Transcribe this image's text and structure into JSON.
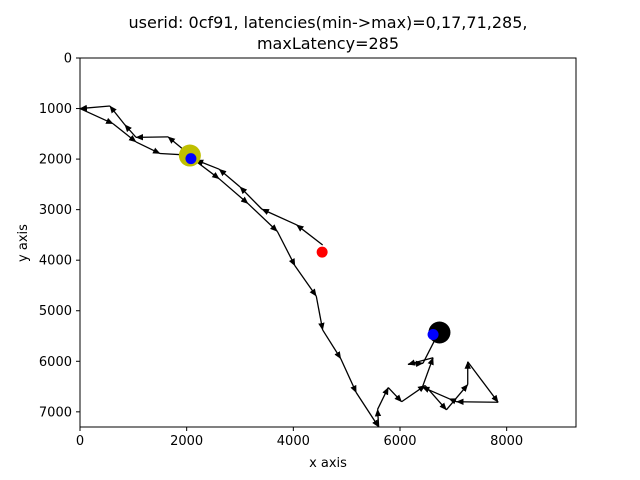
{
  "chart_data": {
    "type": "scatter",
    "title_lines": [
      "userid: 0cf91, latencies(min->max)=0,17,71,285,",
      "maxLatency=285"
    ],
    "xlabel": "x axis",
    "ylabel": "y axis",
    "xlim": [
      0,
      9300
    ],
    "ylim": [
      7300,
      0
    ],
    "y_inverted": true,
    "x_ticks": [
      "0",
      "2000",
      "4000",
      "6000",
      "8000"
    ],
    "y_ticks": [
      "0",
      "1000",
      "2000",
      "3000",
      "4000",
      "5000",
      "6000",
      "7000"
    ],
    "grid": false,
    "trajectory": [
      [
        4550,
        3700
      ],
      [
        4060,
        3300
      ],
      [
        3410,
        2990
      ],
      [
        3000,
        2550
      ],
      [
        2610,
        2200
      ],
      [
        2180,
        2020
      ],
      [
        1650,
        1560
      ],
      [
        1050,
        1570
      ],
      [
        840,
        1320
      ],
      [
        560,
        950
      ],
      [
        0,
        1000
      ],
      [
        620,
        1300
      ],
      [
        1050,
        1660
      ],
      [
        1500,
        1890
      ],
      [
        2020,
        1920
      ],
      [
        2120,
        2000
      ],
      [
        2610,
        2390
      ],
      [
        3150,
        2880
      ],
      [
        3700,
        3430
      ],
      [
        4030,
        4110
      ],
      [
        4430,
        4710
      ],
      [
        4550,
        5380
      ],
      [
        4890,
        5950
      ],
      [
        5180,
        6620
      ],
      [
        5600,
        7300
      ],
      [
        5580,
        6950
      ],
      [
        5780,
        6520
      ],
      [
        6030,
        6800
      ],
      [
        6470,
        6480
      ],
      [
        6870,
        6960
      ],
      [
        7270,
        6460
      ],
      [
        7270,
        6010
      ],
      [
        7840,
        6810
      ],
      [
        7060,
        6800
      ],
      [
        6920,
        6740
      ],
      [
        6420,
        6510
      ],
      [
        6620,
        5930
      ],
      [
        6150,
        6060
      ],
      [
        6430,
        6040
      ],
      [
        6730,
        5420
      ]
    ],
    "markers": [
      {
        "name": "start-marker-large",
        "x": 2060,
        "y": 1930,
        "color": "#bfbf00",
        "size": "large"
      },
      {
        "name": "start-marker-small",
        "x": 2080,
        "y": 1990,
        "color": "#0000ff",
        "size": "small"
      },
      {
        "name": "red-marker",
        "x": 4540,
        "y": 3840,
        "color": "#ff0000",
        "size": "small"
      },
      {
        "name": "end-marker-large",
        "x": 6740,
        "y": 5430,
        "color": "#000000",
        "size": "large"
      },
      {
        "name": "end-marker-small",
        "x": 6620,
        "y": 5470,
        "color": "#0000ff",
        "size": "small"
      }
    ],
    "colors": {
      "line": "#000000",
      "axes": "#000000",
      "background": "#ffffff"
    }
  }
}
